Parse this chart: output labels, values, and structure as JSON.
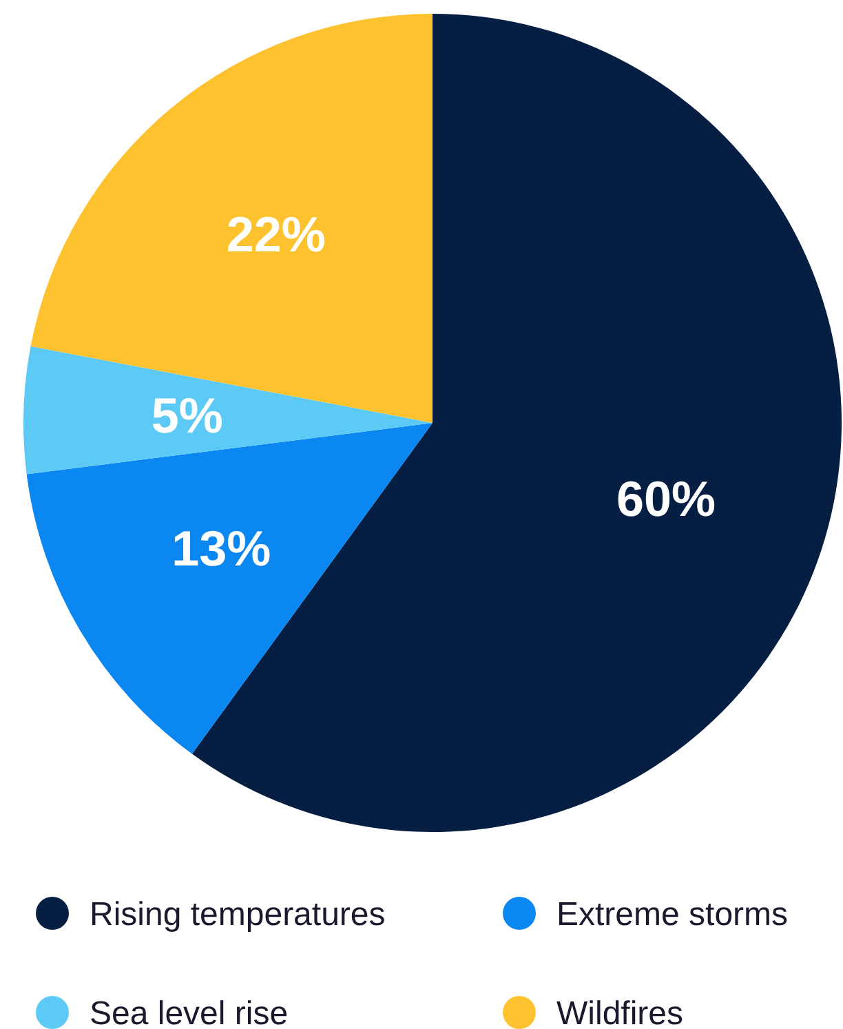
{
  "chart_data": {
    "type": "pie",
    "categories": [
      "Rising temperatures",
      "Extreme storms",
      "Sea level rise",
      "Wildfires"
    ],
    "values": [
      60,
      13,
      5,
      22
    ],
    "colors": [
      "#051e42",
      "#0b87f2",
      "#5ccaf5",
      "#fdc22d"
    ],
    "value_labels": [
      "60%",
      "13%",
      "5%",
      "22%"
    ],
    "legend": "bottom"
  }
}
